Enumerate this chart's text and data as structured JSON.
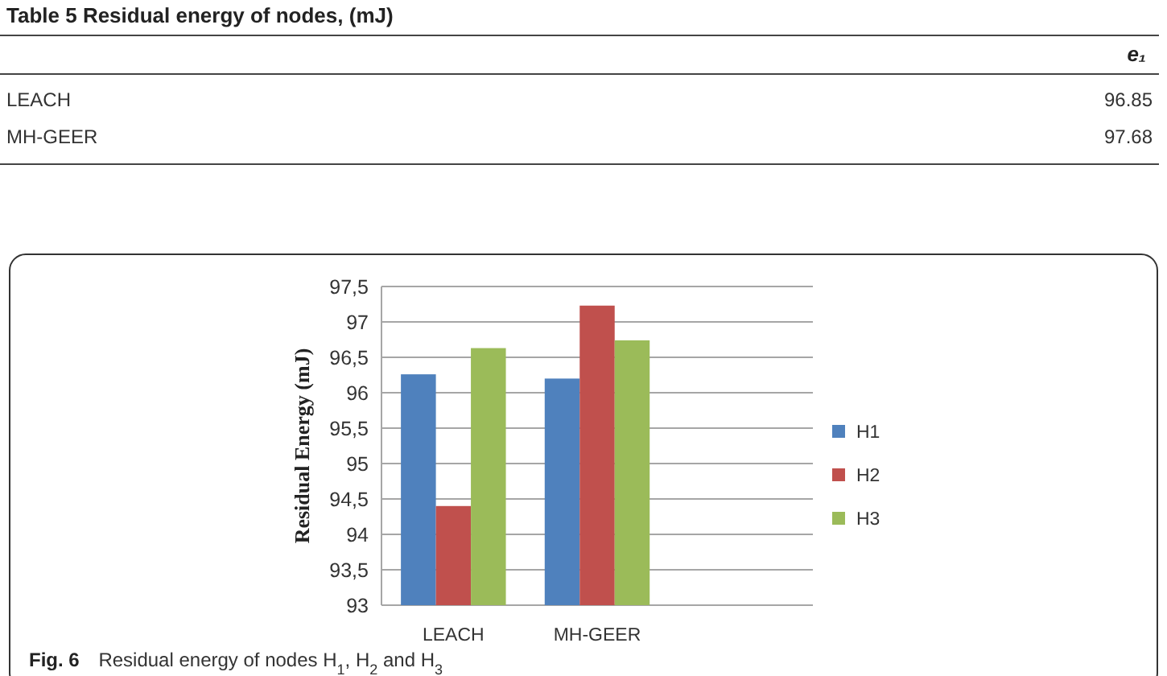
{
  "chart_data": [
    {
      "type": "other",
      "title": "Table 5 Residual energy of nodes, (mJ)",
      "xlabel": "e₁",
      "categories": [
        "LEACH",
        "MH-GEER"
      ],
      "values": [
        96.85,
        97.68
      ],
      "data_labels": true
    },
    {
      "type": "bar",
      "ylabel": "Residual Energy (mJ)",
      "categories": [
        "LEACH",
        "MH-GEER",
        null
      ],
      "series": [
        {
          "name": "H1",
          "color": "#4f81bd",
          "values": [
            96.26,
            96.2,
            null
          ]
        },
        {
          "name": "H2",
          "color": "#c0504d",
          "values": [
            94.4,
            97.23,
            null
          ]
        },
        {
          "name": "H3",
          "color": "#9bbb59",
          "values": [
            96.63,
            96.74,
            null
          ]
        }
      ],
      "ylim": [
        93,
        97.5
      ],
      "yticks": [
        93,
        {
          "value": 93.5,
          "label": "93,5"
        },
        94,
        {
          "value": 94.5,
          "label": "94,5"
        },
        95,
        {
          "value": 95.5,
          "label": "95,5"
        },
        96,
        {
          "value": 96.5,
          "label": "96,5"
        },
        97,
        {
          "value": 97.5,
          "label": "97,5"
        }
      ],
      "grid": "y",
      "legend": "right",
      "annotations": [
        "Fig. 6 Residual energy of nodes H$_{1}$, H$_{2}$ and H$_{3}$"
      ]
    }
  ]
}
